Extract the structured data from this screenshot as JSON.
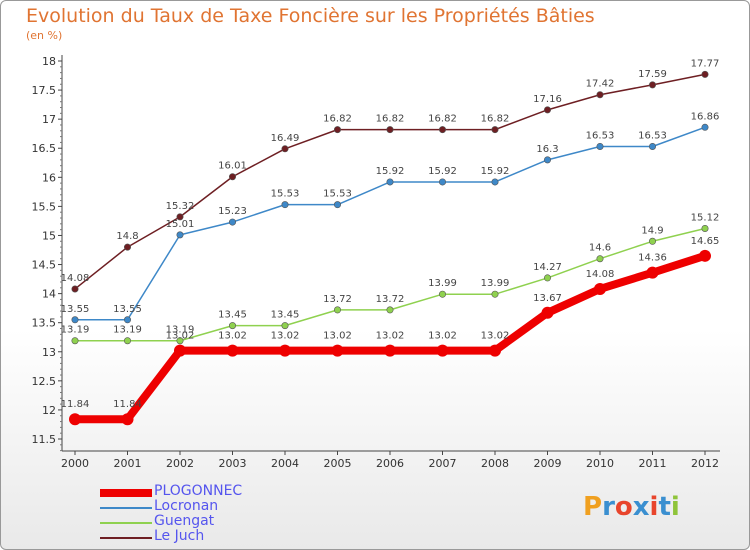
{
  "chart_data": {
    "type": "line",
    "title": "Evolution du Taux de Taxe Foncière sur les Propriétés Bâties",
    "ylabel": "(en %)",
    "xlabel": "",
    "ylim": [
      11.5,
      18
    ],
    "yticks": [
      "11.5",
      "12",
      "12.5",
      "13",
      "13.5",
      "14",
      "14.5",
      "15",
      "15.5",
      "16",
      "16.5",
      "17",
      "17.5",
      "18"
    ],
    "categories": [
      "2000",
      "2001",
      "2002",
      "2003",
      "2004",
      "2005",
      "2006",
      "2007",
      "2008",
      "2009",
      "2010",
      "2011",
      "2012"
    ],
    "series": [
      {
        "name": "Le Juch",
        "color": "#6e1f23",
        "thick": false,
        "values": [
          14.08,
          14.8,
          15.32,
          16.01,
          16.49,
          16.82,
          16.82,
          16.82,
          16.82,
          17.16,
          17.42,
          17.59,
          17.77
        ],
        "labels": [
          "14.08",
          "14.8",
          "15.32",
          "16.01",
          "16.49",
          "16.82",
          "16.82",
          "16.82",
          "16.82",
          "17.16",
          "17.42",
          "17.59",
          "17.77"
        ]
      },
      {
        "name": "Locronan",
        "color": "#3e88c8",
        "thick": false,
        "values": [
          13.55,
          13.55,
          15.01,
          15.23,
          15.53,
          15.53,
          15.92,
          15.92,
          15.92,
          16.3,
          16.53,
          16.53,
          16.86
        ],
        "labels": [
          "13.55",
          "13.55",
          "15.01",
          "15.23",
          "15.53",
          "15.53",
          "15.92",
          "15.92",
          "15.92",
          "16.3",
          "16.53",
          "16.53",
          "16.86"
        ]
      },
      {
        "name": "Guengat",
        "color": "#8fd14f",
        "thick": false,
        "values": [
          13.19,
          13.19,
          13.19,
          13.45,
          13.45,
          13.72,
          13.72,
          13.99,
          13.99,
          14.27,
          14.6,
          14.9,
          15.12
        ],
        "labels": [
          "13.19",
          "13.19",
          "13.19",
          "13.45",
          "13.45",
          "13.72",
          "13.72",
          "13.99",
          "13.99",
          "14.27",
          "14.6",
          "14.9",
          "15.12"
        ]
      },
      {
        "name": "PLOGONNEC",
        "color": "#ee0000",
        "thick": true,
        "values": [
          11.84,
          11.84,
          13.02,
          13.02,
          13.02,
          13.02,
          13.02,
          13.02,
          13.02,
          13.67,
          14.08,
          14.36,
          14.65
        ],
        "labels": [
          "11.84",
          "11.84",
          "13.02",
          "13.02",
          "13.02",
          "13.02",
          "13.02",
          "13.02",
          "13.02",
          "13.67",
          "14.08",
          "14.36",
          "14.65"
        ]
      }
    ],
    "legend": [
      "PLOGONNEC",
      "Locronan",
      "Guengat",
      "Le Juch"
    ],
    "legend_position": "bottom-left",
    "grid": false
  },
  "logo": {
    "letters": [
      "P",
      "r",
      "o",
      "x",
      "i",
      "t",
      "i"
    ],
    "colors": [
      "#f0a020",
      "#3a8fd0",
      "#e8452c",
      "#3a8fd0",
      "#e8452c",
      "#3a8fd0",
      "#8fc43a"
    ]
  }
}
